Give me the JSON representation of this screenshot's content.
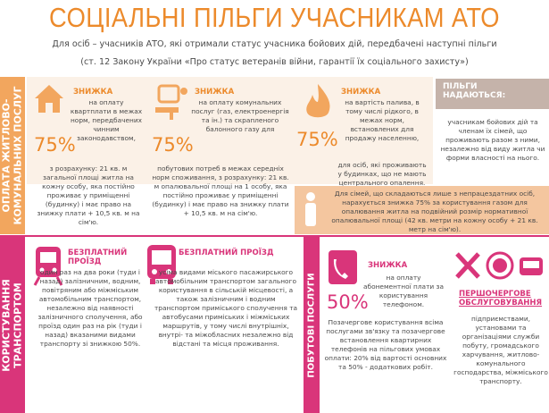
{
  "header": {
    "title": "СОЦІАЛЬНІ ПІЛЬГИ УЧАСНИКАМ АТО",
    "subtitle": [
      "Для осіб – учасників АТО, які отримали статус учасника бойових дій, передбачені наступні пільги",
      "(ст. 12 Закону України «Про статус ветеранів війни, гарантії їх соціального захисту»)"
    ]
  },
  "housing": {
    "side_label": [
      "ОПЛАТА ЖИТЛОВО-",
      "КОМУНАЛЬНИХ ПОСЛУГ"
    ],
    "cards": [
      {
        "heading": "ЗНИЖКА",
        "percent": "75%",
        "description": "на оплату квартплати в межах норм, передбачених чинним законодавством,",
        "details": "з розрахунку: 21 кв. м загальної площі житла на кожну особу, яка постійно проживає у приміщенні (будинку) і має право на знижку плати + 10,5 кв. м на сім'ю."
      },
      {
        "heading": "ЗНИЖКА",
        "percent": "75%",
        "description": "на оплату комунальних послуг (газ, електроенергія та ін.) та скрапленого балонного газу для",
        "details": "побутових потреб в межах середніх норм споживання, з розрахунку: 21 кв. м опалювальної площі на 1 особу, яка постійно проживає у приміщенні (будинку) і має право на знижку плати + 10,5 кв. м на сім'ю."
      },
      {
        "heading": "ЗНИЖКА",
        "percent": "75%",
        "description": "на вартість палива, в тому числі рідкого, в межах норм, встановлених для продажу населенню,",
        "details": "для осіб, які проживають у будинках, що не мають центрального опалення."
      }
    ],
    "benefits": {
      "heading": [
        "ПІЛЬГИ",
        "НАДАЮТЬСЯ:"
      ],
      "text": "учасникам бойових дій та членам їх сімей, що проживають разом з ними, незалежно від виду житла чи форми власності на нього."
    },
    "gas_note": "Для сімей, що складаються лише з непрацездатних осіб, нарахується знижка 75% за користування газом для опалювання житла на подвійний розмір нормативної опалювальної площі (42 кв. метри на кожну особу + 21 кв. метр на сім'ю)."
  },
  "transport": {
    "side_label": [
      "КОРИСТУВАННЯ",
      "ТРАНСПОРТОМ"
    ],
    "cards": [
      {
        "heading": "БЕЗПЛАТНИЙ ПРОЇЗД",
        "text": "один раз на два роки (туди і назад) залізничним, водним, повітряним або міжміським автомобільним транспортом, незалежно від наявності залізничного сполучення, або проїзд один раз на рік (туди і назад) вказаними видами транспорту зі знижкою 50%."
      },
      {
        "heading": "БЕЗПЛАТНИЙ ПРОЇЗД",
        "text": "усіма видами міського пасажирського автомобільним транспортом загального користування в сільській місцевості, а також залізничним і водним транспортом приміського сполучення та автобусами приміських і міжміських маршрутів, у тому числі внутрішніх, внутрі- та міжобласних незалежно від відстані та місця проживання."
      }
    ]
  },
  "services": {
    "side_label": "ПОБУТОВІ ПОСЛУГИ",
    "phone": {
      "percent": "50%",
      "heading": "ЗНИЖКА",
      "description": "на оплату абонементної плати за користування телефоном.",
      "text": "Позачергове користування всіма послугами зв'язку та позачергове встановлення квартирних телефонів на пільгових умовах оплати: 20% від вартості основних та 50% - додаткових робіт."
    },
    "priority": {
      "heading": "ПЕРШОЧЕРГОВЕ ОБСЛУГОВУВАННЯ",
      "text": "підприємствами, установами та організаціями служби побуту, громадського харчування, житлово-комунального господарства, міжміського транспорту."
    }
  }
}
